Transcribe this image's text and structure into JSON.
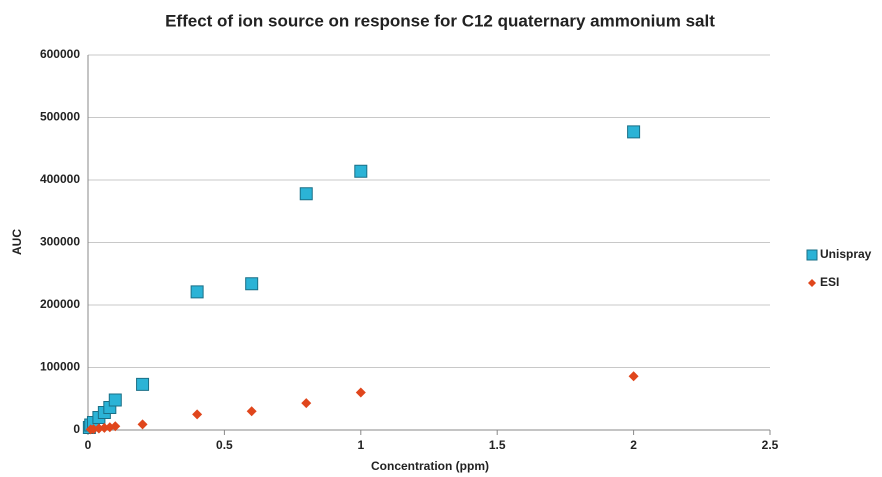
{
  "chart_data": {
    "type": "scatter",
    "title": "Effect of ion source on response for C12 quaternary ammonium salt",
    "xlabel": "Concentration (ppm)",
    "ylabel": "AUC",
    "xlim": [
      0,
      2.5
    ],
    "xticks": [
      0,
      0.5,
      1,
      1.5,
      2,
      2.5
    ],
    "ylim": [
      0,
      600000
    ],
    "yticks": [
      0,
      100000,
      200000,
      300000,
      400000,
      500000,
      600000
    ],
    "grid": true,
    "legend": "right",
    "series": [
      {
        "name": "Unispray",
        "color": "#2bb3d6",
        "marker": "square",
        "x": [
          0.005,
          0.01,
          0.02,
          0.04,
          0.06,
          0.08,
          0.1,
          0.2,
          0.4,
          0.6,
          0.8,
          1.0,
          2.0
        ],
        "values": [
          4000,
          8000,
          12000,
          20000,
          28000,
          36000,
          48000,
          73000,
          221000,
          234000,
          378000,
          414000,
          477000
        ]
      },
      {
        "name": "ESI",
        "color": "#e0461c",
        "marker": "diamond",
        "x": [
          0.01,
          0.02,
          0.04,
          0.06,
          0.08,
          0.1,
          0.2,
          0.4,
          0.6,
          0.8,
          1.0,
          2.0
        ],
        "values": [
          1000,
          1500,
          2500,
          3500,
          4500,
          6000,
          9000,
          25000,
          30000,
          43000,
          60000,
          86000
        ]
      }
    ]
  }
}
